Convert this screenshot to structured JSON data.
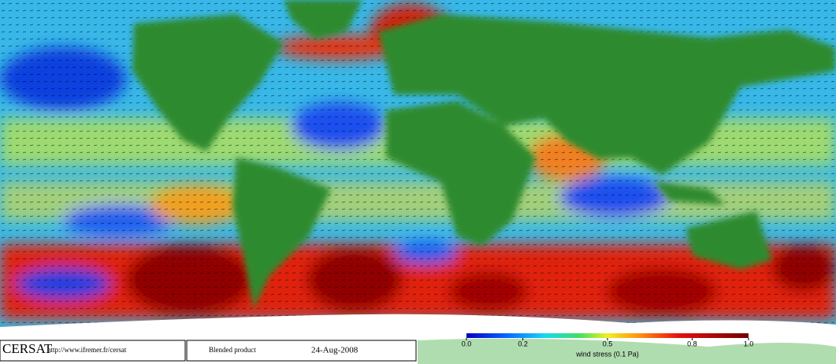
{
  "header": {
    "logo": "CERSAT",
    "url": "http://www.ifremer.fr/cersat"
  },
  "product": "Blended product",
  "date": "24-Aug-2008",
  "colorbar": {
    "title": "wind stress (0.1 Pa)",
    "range": [
      0,
      1
    ],
    "ticks": [
      {
        "value": 0,
        "label": "0.0"
      },
      0.2,
      0.5,
      0.8,
      {
        "value": 1,
        "label": "1.0"
      }
    ]
  }
}
